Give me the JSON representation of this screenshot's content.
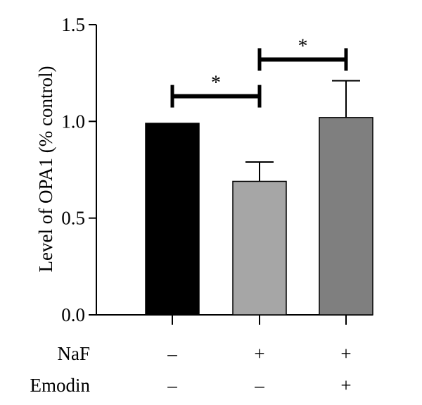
{
  "chart_data": {
    "type": "bar",
    "title": "",
    "xlabel": "",
    "ylabel": "Level of OPA1 (% control)",
    "ylim": [
      0,
      1.5
    ],
    "yticks": [
      {
        "value": 0.0,
        "label": "0.0"
      },
      {
        "value": 0.5,
        "label": "0.5"
      },
      {
        "value": 1.0,
        "label": "1.0"
      },
      {
        "value": 1.5,
        "label": "1.5"
      }
    ],
    "grid": false,
    "bars": [
      {
        "value": 0.99,
        "error": 0.0,
        "color": "#000000"
      },
      {
        "value": 0.69,
        "error": 0.1,
        "color": "#a6a6a6"
      },
      {
        "value": 1.02,
        "error": 0.19,
        "color": "#7f7f7f"
      }
    ],
    "conditions": [
      {
        "name": "NaF",
        "signs": [
          "–",
          "+",
          "+"
        ]
      },
      {
        "name": "Emodin",
        "signs": [
          "–",
          "–",
          "+"
        ]
      }
    ],
    "significance": [
      {
        "from": 0,
        "to": 1,
        "y": 1.13,
        "label": "*"
      },
      {
        "from": 1,
        "to": 2,
        "y": 1.32,
        "label": "*"
      }
    ]
  }
}
